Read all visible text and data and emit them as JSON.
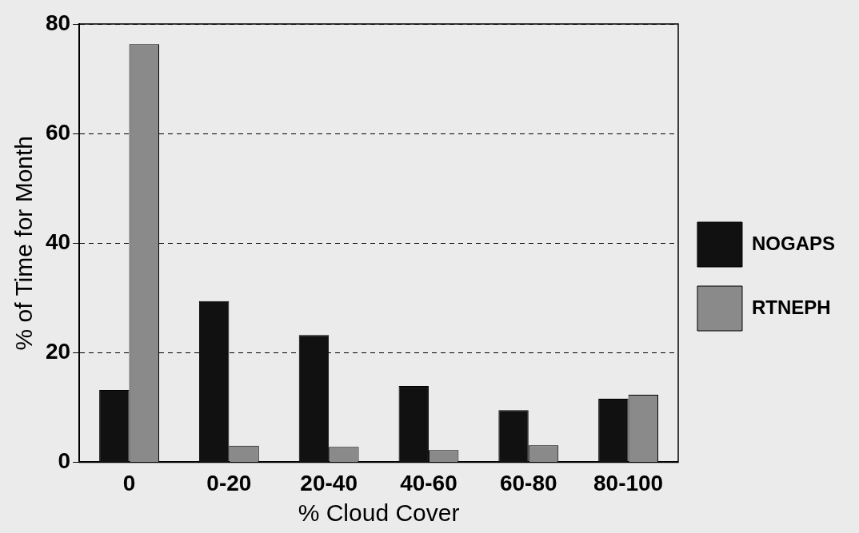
{
  "chart_data": {
    "type": "bar",
    "xlabel": "% Cloud Cover",
    "ylabel": "% of Time for Month",
    "categories": [
      "0",
      "0-20",
      "20-40",
      "40-60",
      "60-80",
      "80-100"
    ],
    "series": [
      {
        "name": "NOGAPS",
        "color": "#111111",
        "values": [
          13.2,
          29.4,
          23.2,
          13.9,
          9.5,
          11.6
        ]
      },
      {
        "name": "RTNEPH",
        "color": "#8a8a8a",
        "values": [
          76.3,
          3.0,
          2.8,
          2.2,
          3.1,
          12.3
        ]
      }
    ],
    "ylim": [
      0,
      80
    ],
    "yticks": [
      0,
      20,
      40,
      60,
      80
    ],
    "grid": "y",
    "legend": "right"
  }
}
